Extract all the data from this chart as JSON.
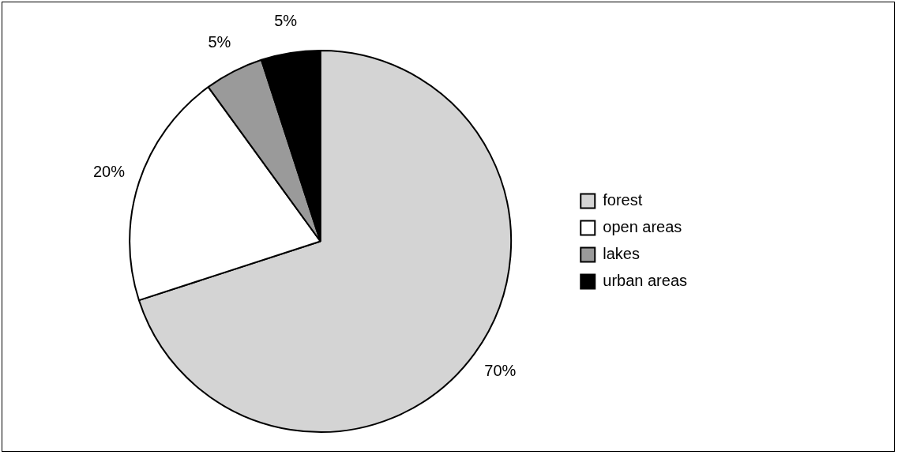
{
  "chart_data": {
    "type": "pie",
    "categories": [
      "forest",
      "open areas",
      "lakes",
      "urban areas"
    ],
    "values": [
      70,
      20,
      5,
      5
    ],
    "colors": [
      "#d4d4d4",
      "#ffffff",
      "#9a9a9a",
      "#000000"
    ],
    "value_labels": [
      "70%",
      "20%",
      "5%",
      "5%"
    ],
    "legend": "right"
  }
}
